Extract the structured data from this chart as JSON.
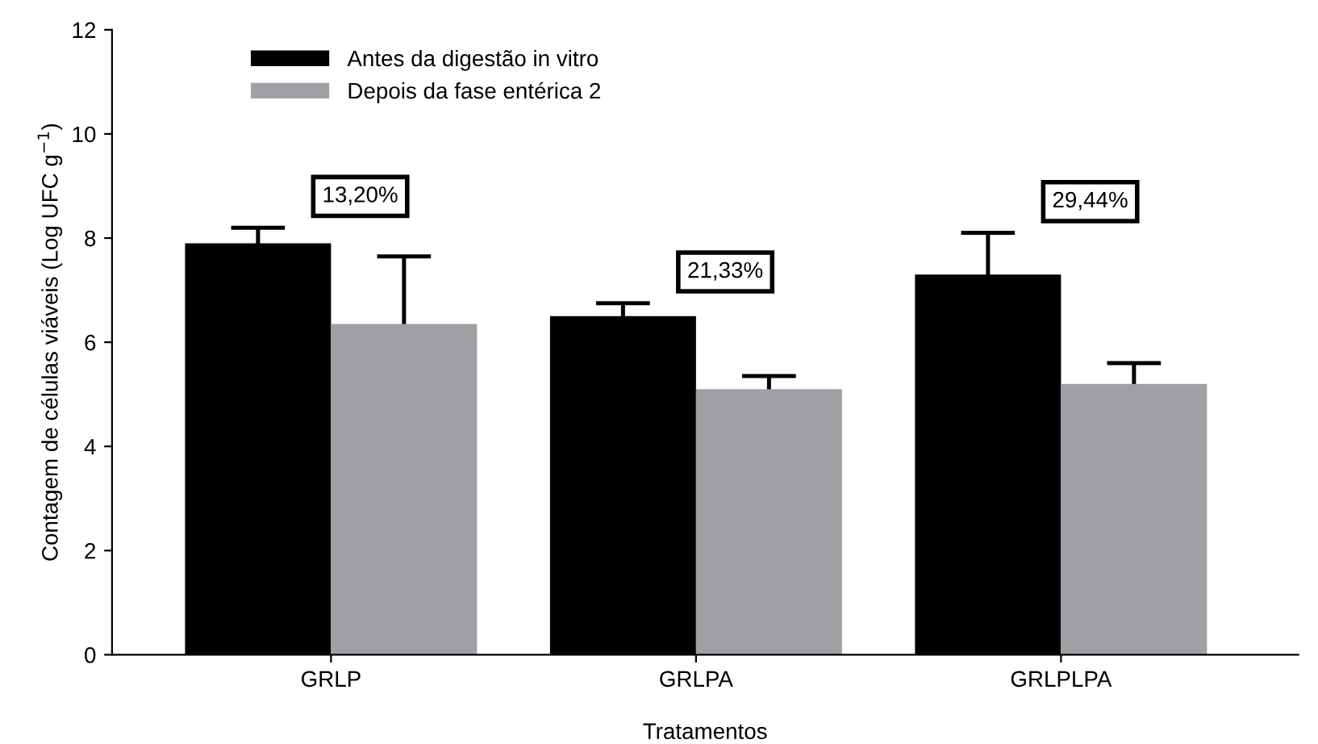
{
  "chart_data": {
    "type": "bar",
    "xlabel": "Tratamentos",
    "ylabel": "Contagem de células viáveis (Log UFC g$^{−1}$)",
    "categories": [
      "GRLP",
      "GRLPA",
      "GRLPLPA"
    ],
    "series": [
      {
        "name": "Antes da digestão in vitro",
        "color": "#000000",
        "values": [
          7.9,
          6.5,
          7.3
        ],
        "errors": [
          0.3,
          0.25,
          0.8
        ]
      },
      {
        "name": "Depois da fase entérica 2",
        "color": "#a0a0a4",
        "values": [
          6.35,
          5.1,
          5.2
        ],
        "errors": [
          1.3,
          0.25,
          0.4
        ]
      }
    ],
    "annotations": [
      "13,20%",
      "21,33%",
      "29,44%"
    ],
    "ylim": [
      0,
      12
    ],
    "yticks": [
      0,
      2,
      4,
      6,
      8,
      10,
      12
    ],
    "grid": false,
    "legend": "top left"
  }
}
